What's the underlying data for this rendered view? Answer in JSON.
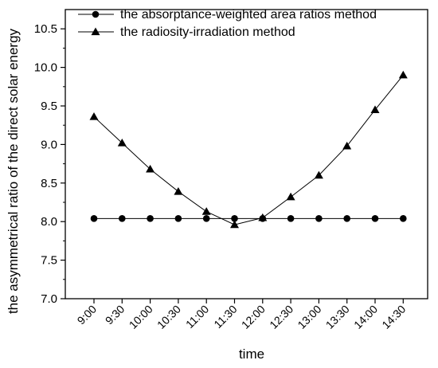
{
  "chart_data": {
    "type": "line",
    "title": "",
    "xlabel": "time",
    "ylabel": "the asymmetrical ratio of the direct solar energy",
    "categories": [
      "9:00",
      "9:30",
      "10:00",
      "10:30",
      "11:00",
      "11:30",
      "12:00",
      "12:30",
      "13:00",
      "13:30",
      "14:00",
      "14:30"
    ],
    "ylim": [
      7.0,
      10.75
    ],
    "yticks": [
      "7.0",
      "7.5",
      "8.0",
      "8.5",
      "9.0",
      "9.5",
      "10.0",
      "10.5"
    ],
    "grid": false,
    "legend_position": "top-left",
    "series": [
      {
        "name": "the absorptance-weighted area ratios method",
        "marker": "circle",
        "values": [
          8.04,
          8.04,
          8.04,
          8.04,
          8.04,
          8.04,
          8.04,
          8.04,
          8.04,
          8.04,
          8.04,
          8.04
        ]
      },
      {
        "name": "the radiosity-irradiation method",
        "marker": "triangle",
        "values": [
          9.36,
          9.02,
          8.68,
          8.39,
          8.13,
          7.96,
          8.05,
          8.32,
          8.6,
          8.98,
          9.45,
          9.9
        ]
      }
    ],
    "colors": {
      "line": "#000000",
      "axis": "#000000"
    }
  }
}
